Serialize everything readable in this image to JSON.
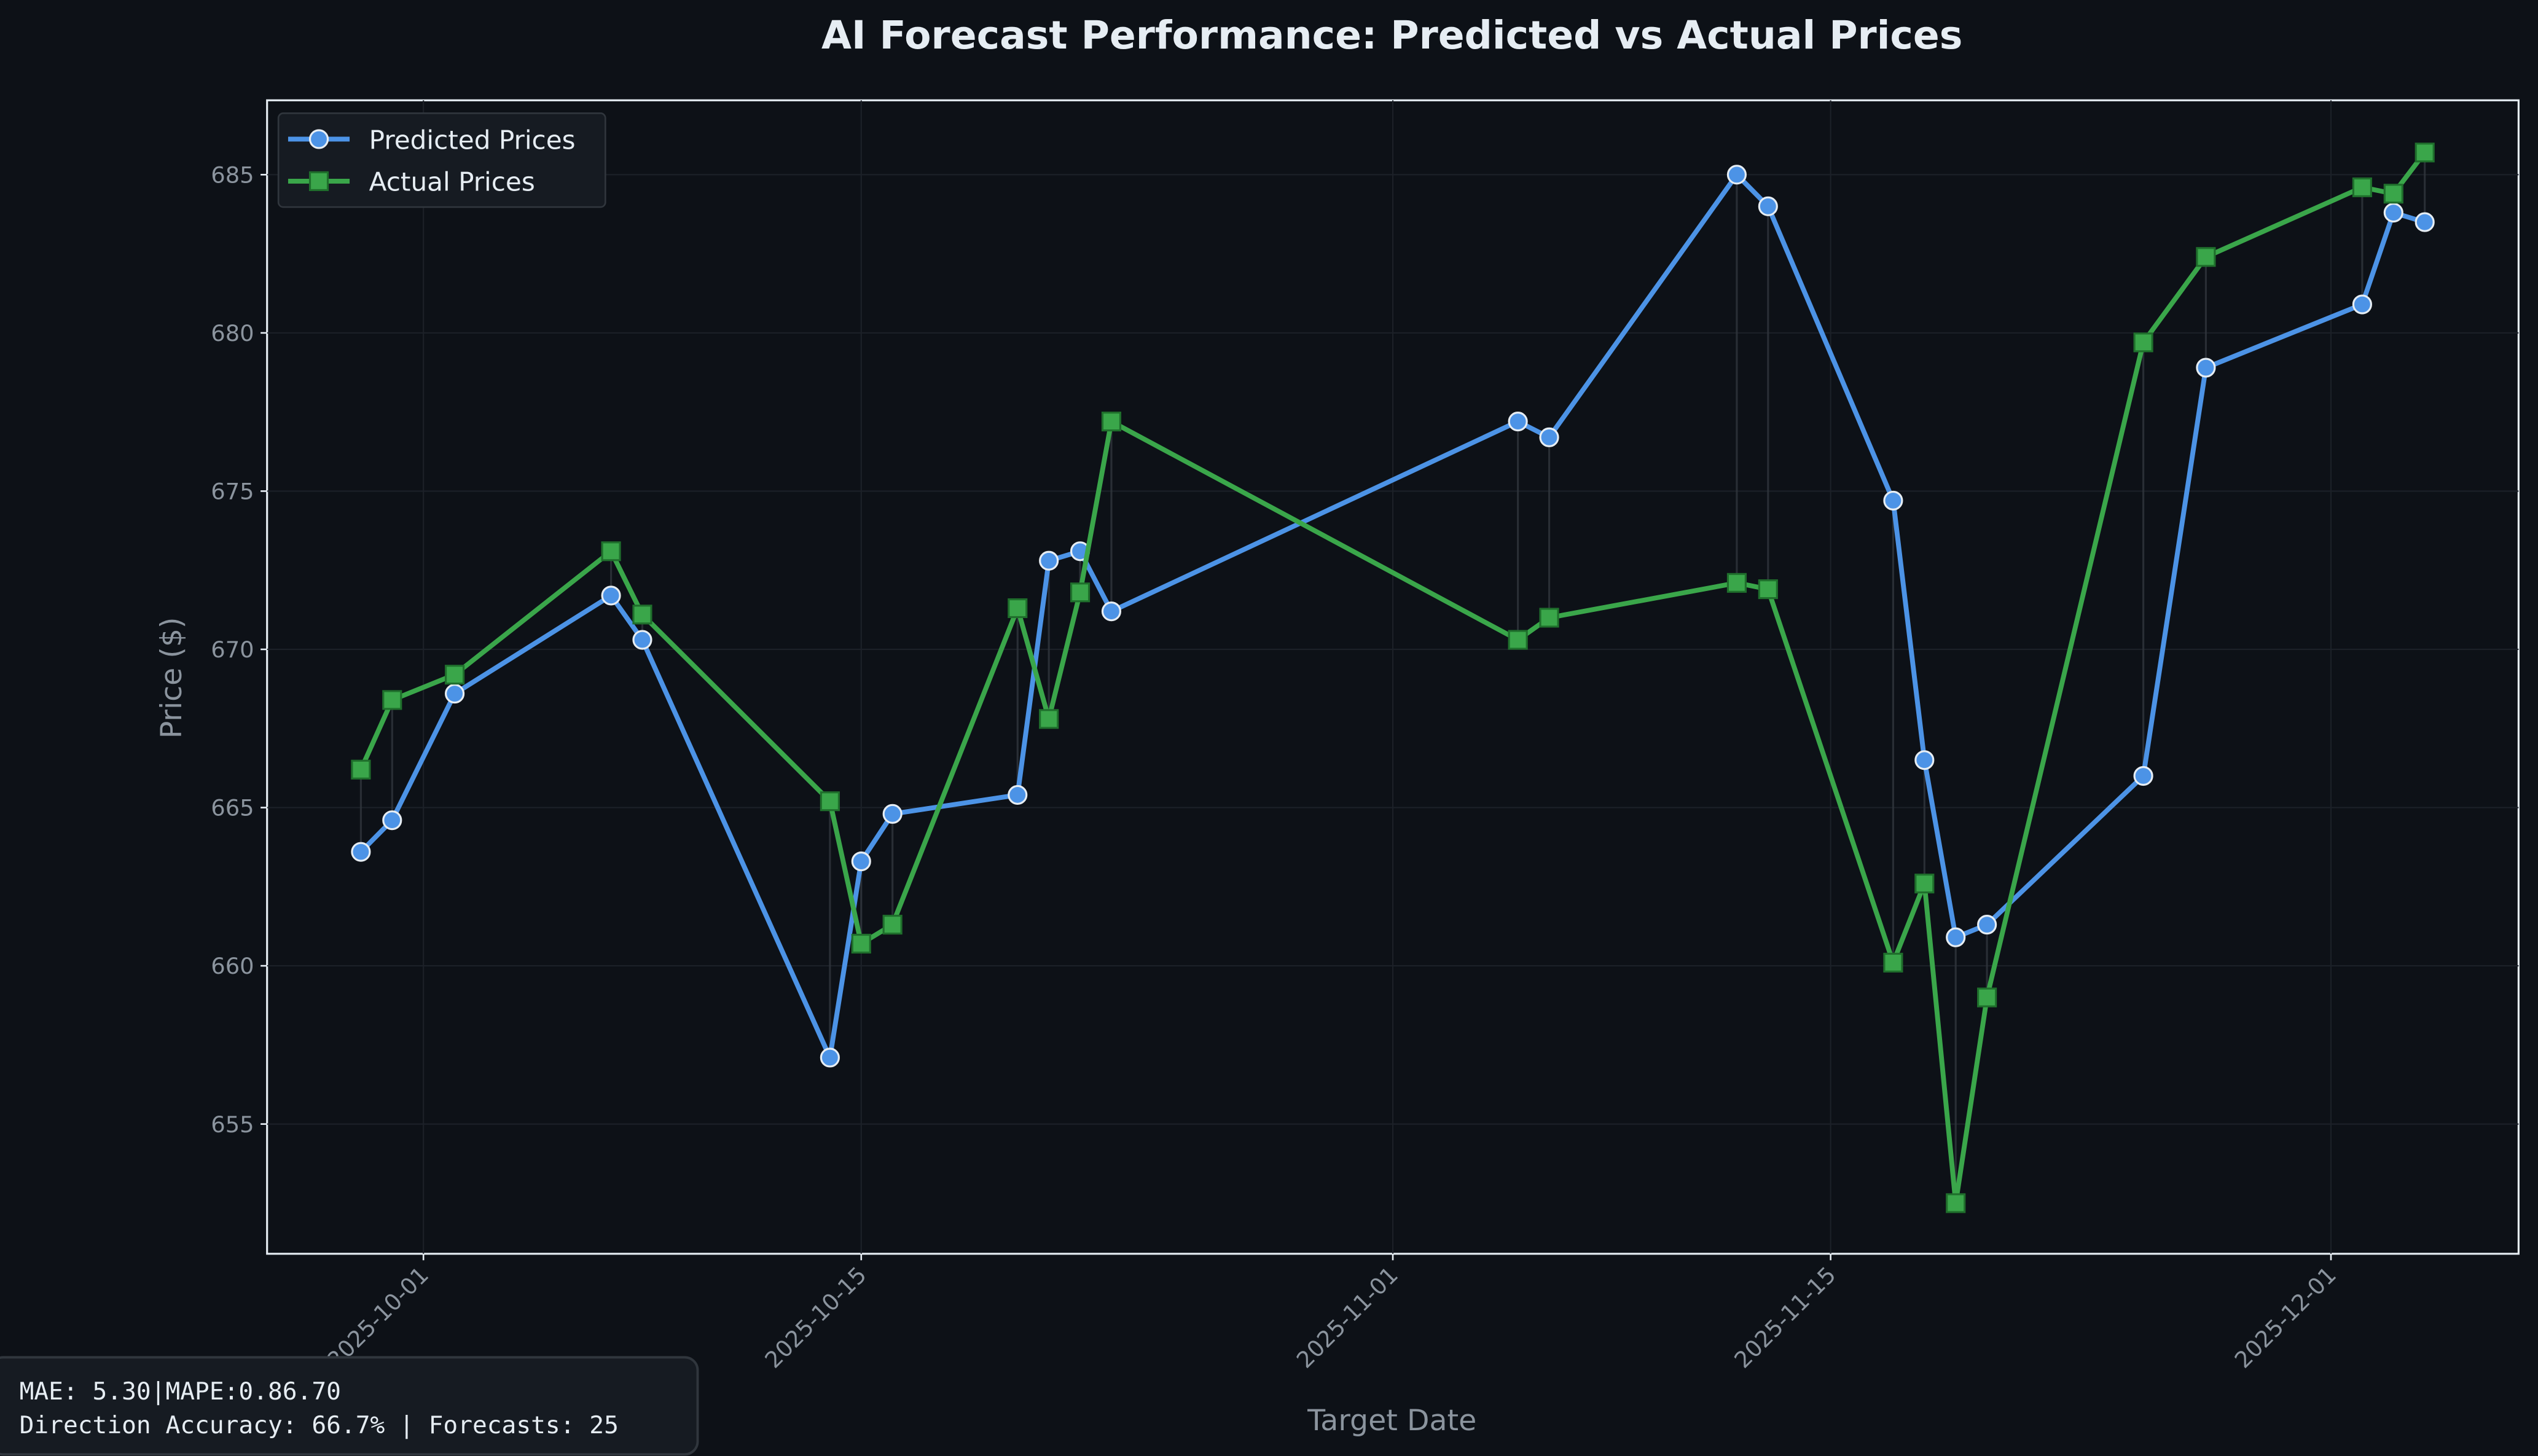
{
  "chart_data": {
    "type": "line",
    "title": "AI Forecast Performance: Predicted vs Actual Prices",
    "x_label": "Target Date",
    "y_label": "Price ($)",
    "x": [
      "2025-09-29",
      "2025-09-30",
      "2025-10-02",
      "2025-10-07",
      "2025-10-08",
      "2025-10-14",
      "2025-10-15",
      "2025-10-16",
      "2025-10-20",
      "2025-10-21",
      "2025-10-22",
      "2025-10-23",
      "2025-11-05",
      "2025-11-06",
      "2025-11-12",
      "2025-11-13",
      "2025-11-17",
      "2025-11-18",
      "2025-11-19",
      "2025-11-20",
      "2025-11-25",
      "2025-11-27",
      "2025-12-02",
      "2025-12-03",
      "2025-12-04"
    ],
    "series": [
      {
        "name": "Predicted Prices",
        "color": "#4c93e6",
        "marker": "circle",
        "values": [
          663.6,
          664.6,
          668.6,
          671.7,
          670.3,
          657.1,
          663.3,
          664.8,
          665.4,
          672.8,
          673.1,
          671.2,
          677.2,
          676.7,
          685.0,
          684.0,
          674.7,
          666.5,
          660.9,
          661.3,
          666.0,
          678.9,
          680.9,
          683.8,
          683.5
        ]
      },
      {
        "name": "Actual Prices",
        "color": "#3aa64a",
        "marker": "square",
        "values": [
          666.2,
          668.4,
          669.2,
          673.1,
          671.1,
          665.2,
          660.7,
          661.3,
          671.3,
          667.8,
          671.8,
          677.2,
          670.3,
          671.0,
          672.1,
          671.9,
          660.1,
          662.6,
          652.5,
          659.0,
          679.7,
          682.4,
          684.6,
          684.4,
          685.7
        ]
      }
    ],
    "xlim": [
      "2025-09-26",
      "2025-12-07"
    ],
    "xticks": [
      "2025-10-01",
      "2025-10-15",
      "2025-11-01",
      "2025-11-15",
      "2025-12-01"
    ],
    "ylim": [
      650.9,
      687.35
    ],
    "yticks": [
      655,
      660,
      665,
      670,
      675,
      680,
      685
    ],
    "grid": true,
    "legend": "upper left",
    "annotation": [
      "MAE: 5.30|MAPE:0.86.70",
      "Direction Accuracy: 66.7%  |  Forecasts: 25"
    ]
  }
}
